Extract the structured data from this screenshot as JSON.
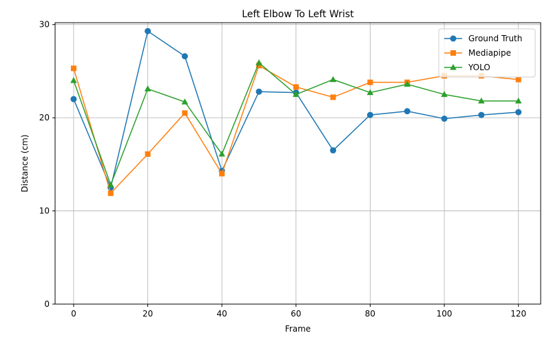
{
  "chart_data": {
    "type": "line",
    "title": "Left Elbow To Left Wrist",
    "xlabel": "Frame",
    "ylabel": "Distance (cm)",
    "x": [
      0,
      10,
      20,
      30,
      40,
      50,
      60,
      70,
      80,
      90,
      100,
      110,
      120
    ],
    "xlim": [
      -5,
      126
    ],
    "ylim": [
      0,
      30.2
    ],
    "xticks": [
      0,
      20,
      40,
      60,
      80,
      100,
      120
    ],
    "yticks": [
      0,
      10,
      20,
      30
    ],
    "grid": true,
    "legend_position": "top-right",
    "series": [
      {
        "name": "Ground Truth",
        "color": "#1f77b4",
        "marker": "circle",
        "values": [
          22.0,
          12.5,
          29.3,
          26.6,
          14.3,
          22.8,
          22.7,
          16.5,
          20.3,
          20.7,
          19.9,
          20.3,
          20.6
        ]
      },
      {
        "name": "Mediapipe",
        "color": "#ff7f0e",
        "marker": "square",
        "values": [
          25.3,
          11.9,
          16.1,
          20.5,
          14.0,
          25.6,
          23.3,
          22.2,
          23.8,
          23.8,
          24.5,
          24.5,
          24.1
        ]
      },
      {
        "name": "YOLO",
        "color": "#2ca02c",
        "marker": "triangle",
        "values": [
          24.0,
          12.8,
          23.1,
          21.7,
          16.1,
          25.9,
          22.5,
          24.1,
          22.7,
          23.6,
          22.5,
          21.8,
          21.8
        ]
      }
    ]
  }
}
